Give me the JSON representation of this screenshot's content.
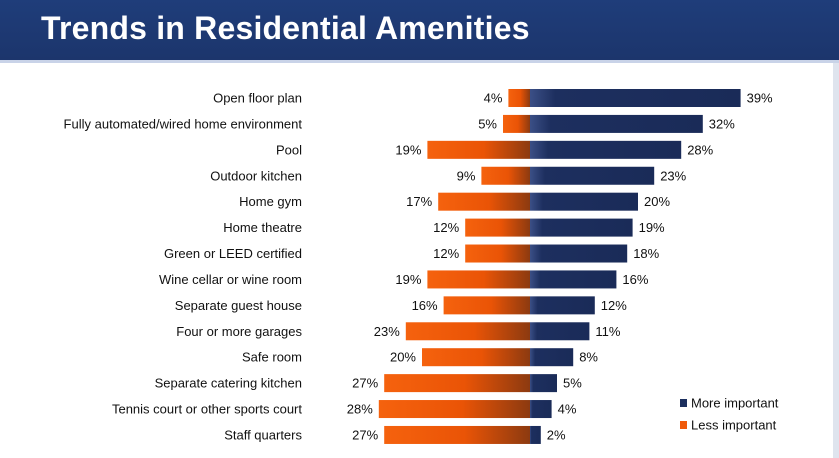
{
  "header": {
    "title": "Trends in Residential Amenities"
  },
  "colors": {
    "header_bg": "#1f3d7a",
    "more_important": "#1c2f5e",
    "less_important": "#f05a0a"
  },
  "chart_data": {
    "type": "bar",
    "orientation": "horizontal-diverging",
    "title": "",
    "xlabel": "",
    "ylabel": "",
    "grid": false,
    "legend_position": "bottom-right",
    "xlim": [
      -30,
      40
    ],
    "categories": [
      "Open floor plan",
      "Fully automated/wired home environment",
      "Pool",
      "Outdoor kitchen",
      "Home gym",
      "Home theatre",
      "Green or LEED certified",
      "Wine cellar or wine room",
      "Separate guest house",
      "Four or more garages",
      "Safe room",
      "Separate catering kitchen",
      "Tennis court or other sports court",
      "Staff quarters"
    ],
    "series": [
      {
        "name": "More important",
        "values": [
          39,
          32,
          28,
          23,
          20,
          19,
          18,
          16,
          12,
          11,
          8,
          5,
          4,
          2
        ],
        "labels": [
          "39%",
          "32%",
          "28%",
          "23%",
          "20%",
          "19%",
          "18%",
          "16%",
          "12%",
          "11%",
          "8%",
          "5%",
          "4%",
          "2%"
        ]
      },
      {
        "name": "Less important",
        "values": [
          4,
          5,
          19,
          9,
          17,
          12,
          12,
          19,
          16,
          23,
          20,
          27,
          28,
          27
        ],
        "labels": [
          "4%",
          "5%",
          "19%",
          "9%",
          "17%",
          "12%",
          "12%",
          "19%",
          "16%",
          "23%",
          "20%",
          "27%",
          "28%",
          "27%"
        ]
      }
    ]
  }
}
